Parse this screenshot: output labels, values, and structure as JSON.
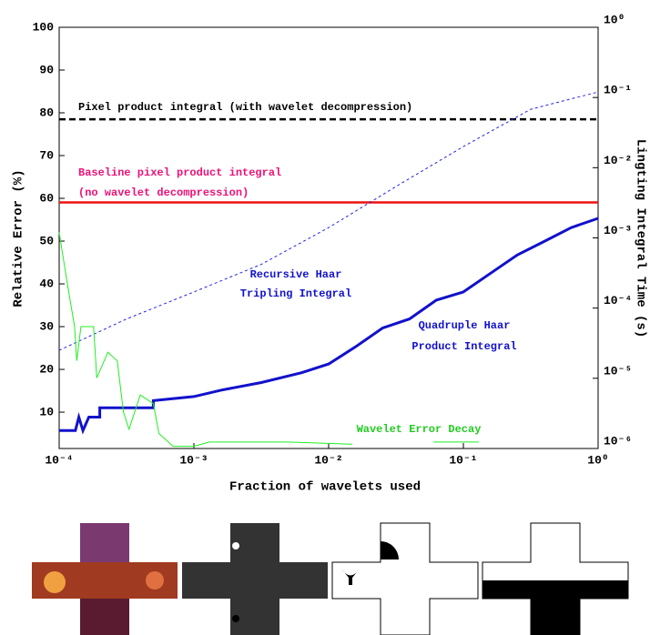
{
  "chart_data": {
    "type": "line",
    "xlabel": "Fraction of wavelets used",
    "ylabel": "Relative Error (%)",
    "y2label": "Lingting Integral Time (s)",
    "xscale": "log",
    "y2scale": "log",
    "grid": false,
    "xlim": [
      0.0001,
      1
    ],
    "xticks": [
      {
        "value": 0.0001,
        "label": "10⁻⁴"
      },
      {
        "value": 0.001,
        "label": "10⁻³"
      },
      {
        "value": 0.01,
        "label": "10⁻²"
      },
      {
        "value": 0.1,
        "label": "10⁻¹"
      },
      {
        "value": 1,
        "label": "10⁰"
      }
    ],
    "ylim": [
      1.5,
      100
    ],
    "yticks": [
      10,
      20,
      30,
      40,
      50,
      60,
      70,
      80,
      90,
      100
    ],
    "y2lim": [
      1e-06,
      1
    ],
    "y2ticks": [
      {
        "value": 1e-06,
        "label": "10⁻⁶"
      },
      {
        "value": 1e-05,
        "label": "10⁻⁵"
      },
      {
        "value": 0.0001,
        "label": "10⁻⁴"
      },
      {
        "value": 0.001,
        "label": "10⁻³"
      },
      {
        "value": 0.01,
        "label": "10⁻²"
      },
      {
        "value": 0.1,
        "label": "10⁻¹"
      },
      {
        "value": 1,
        "label": "10⁰"
      }
    ],
    "series": [
      {
        "axis": "y2",
        "color": "#000000",
        "linestyle": "dashed",
        "linewidth": 2.5,
        "x": [
          0.0001,
          1
        ],
        "values": [
          0.049,
          0.049
        ]
      },
      {
        "axis": "y2",
        "color": "#ee1111",
        "linestyle": "solid",
        "linewidth": 2.5,
        "x": [
          0.0001,
          1
        ],
        "values": [
          0.0032,
          0.0032
        ]
      },
      {
        "axis": "y2",
        "color": "#2222ee",
        "linestyle": "dashed",
        "linewidth": 1,
        "x": [
          0.0001,
          0.000316,
          0.001,
          0.00316,
          0.01,
          0.0316,
          0.1,
          0.316,
          1
        ],
        "values": [
          2.5e-05,
          7e-05,
          0.00017,
          0.00042,
          0.0014,
          0.0054,
          0.02,
          0.068,
          0.12
        ]
      },
      {
        "axis": "y2",
        "color": "#1111cc",
        "linestyle": "solid",
        "linewidth": 3,
        "x": [
          0.0001,
          0.000132,
          0.00014,
          0.00015,
          0.000166,
          0.0002,
          0.0002,
          0.0005,
          0.0005,
          0.001,
          0.0016,
          0.00316,
          0.0063,
          0.01,
          0.0158,
          0.0251,
          0.0398,
          0.063,
          0.1,
          0.158,
          0.251,
          0.398,
          0.631,
          1
        ],
        "values": [
          1.8e-06,
          1.8e-06,
          2.8e-06,
          1.8e-06,
          2.8e-06,
          2.8e-06,
          3.8e-06,
          3.8e-06,
          4.8e-06,
          5.5e-06,
          6.8e-06,
          8.7e-06,
          1.2e-05,
          1.6e-05,
          2.8e-05,
          5.2e-05,
          7e-05,
          0.00013,
          0.00017,
          0.00031,
          0.00057,
          0.00089,
          0.0014,
          0.0019
        ]
      },
      {
        "axis": "y",
        "color": "#22ee22",
        "linestyle": "solid",
        "linewidth": 1,
        "x": [
          0.0001,
          0.000115,
          0.00013,
          0.000135,
          0.000145,
          0.00018,
          0.00019,
          0.00023,
          0.00027,
          0.0003,
          0.00033,
          0.0004,
          0.0005,
          0.00055,
          0.0007,
          0.001,
          0.0013,
          0.005,
          0.015,
          0.02,
          0.06,
          0.13
        ],
        "values": [
          52,
          40,
          30,
          22,
          30,
          30,
          18,
          24,
          22,
          10,
          6,
          14,
          12,
          5,
          2,
          2,
          3,
          3,
          2.5,
          null,
          3,
          3
        ]
      }
    ],
    "annotations": [
      {
        "text": "Pixel product integral (with wavelet decompression)",
        "color": "#000000"
      },
      {
        "text": "Baseline pixel product integral",
        "color": "#ee1177"
      },
      {
        "text": "(no wavelet decompression)",
        "color": "#ee1177"
      },
      {
        "text": "Recursive Haar",
        "color": "#1111cc"
      },
      {
        "text": "Tripling Integral",
        "color": "#1111cc"
      },
      {
        "text": "Quadruple Haar",
        "color": "#1111cc"
      },
      {
        "text": "Product Integral",
        "color": "#1111cc"
      },
      {
        "text": "Wavelet Error Decay",
        "color": "#22cc22"
      }
    ]
  }
}
